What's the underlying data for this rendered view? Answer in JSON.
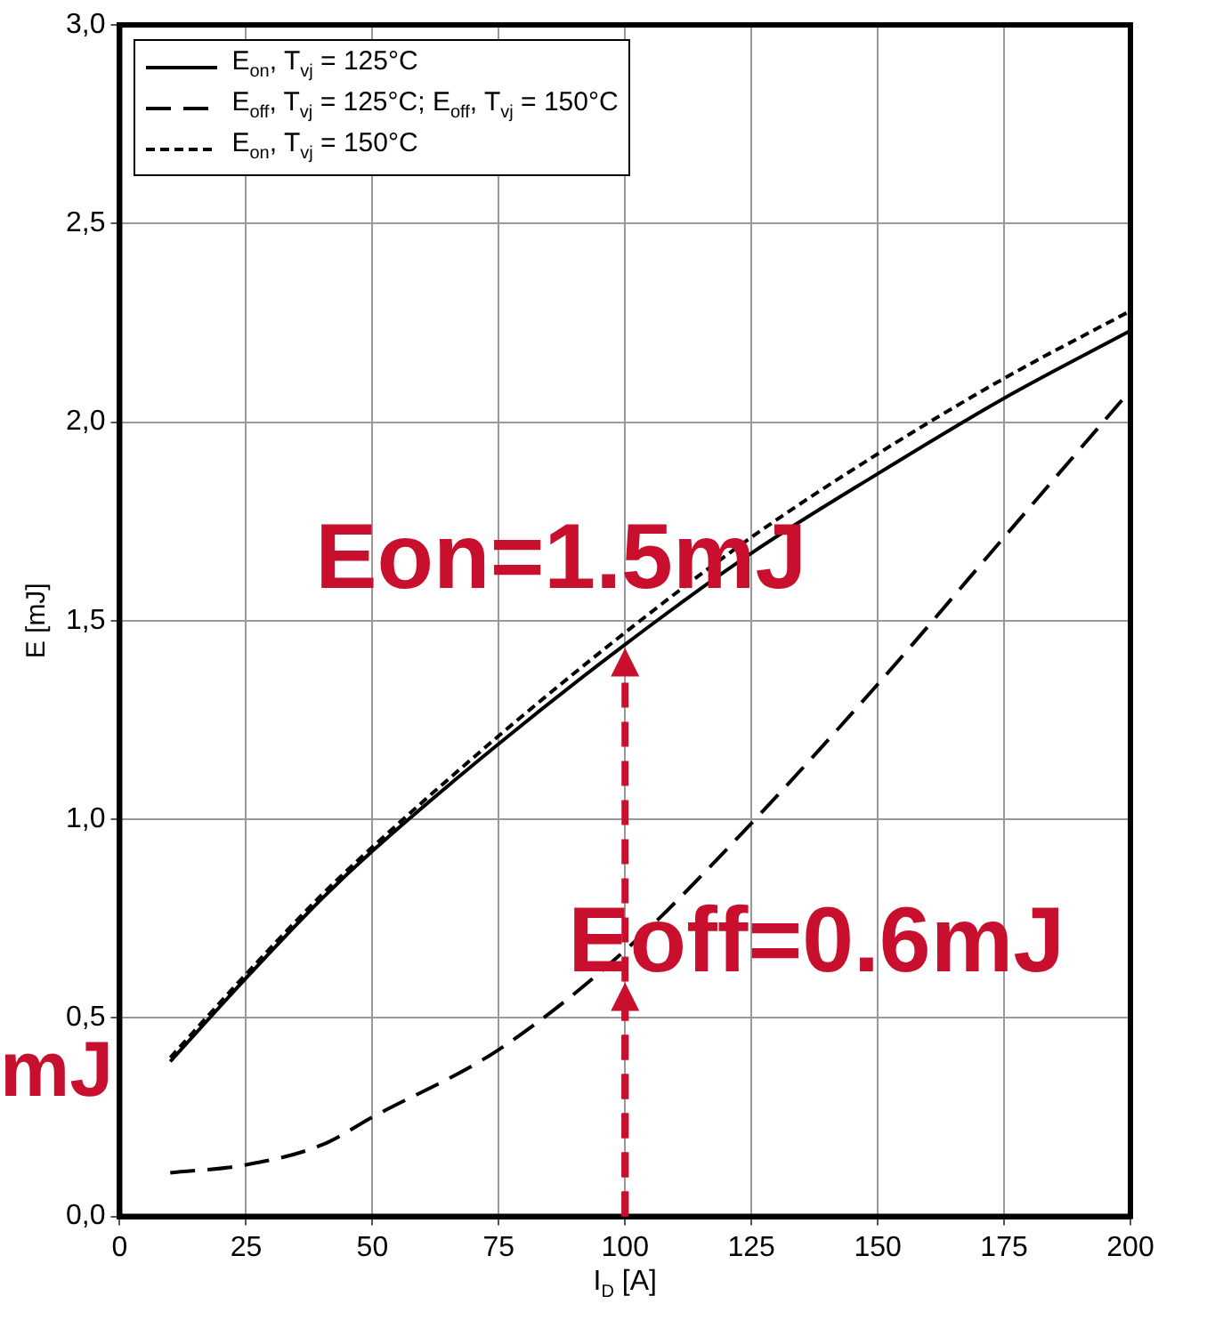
{
  "chart_data": {
    "type": "line",
    "xlabel": "I$_{D}$ [A]",
    "ylabel": "E [mJ]",
    "xlim": [
      0,
      200
    ],
    "xticks": [
      0,
      25,
      50,
      75,
      100,
      125,
      150,
      175,
      200
    ],
    "ylim": [
      0,
      3
    ],
    "yticks": [
      {
        "value": 0,
        "label": "0,0"
      },
      {
        "value": 0.5,
        "label": "0,5"
      },
      {
        "value": 1,
        "label": "1,0"
      },
      {
        "value": 1.5,
        "label": "1,5"
      },
      {
        "value": 2,
        "label": "2,0"
      },
      {
        "value": 2.5,
        "label": "2,5"
      },
      {
        "value": 3,
        "label": "3,0"
      }
    ],
    "grid": true,
    "legend": "top left",
    "marker": "none",
    "x": [
      10,
      25,
      40,
      50,
      75,
      100,
      125,
      150,
      175,
      200
    ],
    "series": [
      {
        "name": "E$_{on}$, T$_{vj}$ = 125°C",
        "color": "#000000",
        "line_style": "solid",
        "values": [
          0.39,
          0.6,
          0.8,
          0.92,
          1.19,
          1.44,
          1.67,
          1.87,
          2.06,
          2.23
        ]
      },
      {
        "name": "E$_{off}$, T$_{vj}$ = 125°C; E$_{off}$, T$_{vj}$ = 150°C",
        "color": "#000000",
        "line_style": "dashed",
        "values": [
          0.11,
          0.13,
          0.18,
          0.25,
          0.42,
          0.67,
          0.99,
          1.34,
          1.71,
          2.08
        ]
      },
      {
        "name": "E$_{on}$, T$_{vj}$ = 150°C",
        "color": "#000000",
        "line_style": "dotted",
        "values": [
          0.4,
          0.61,
          0.81,
          0.93,
          1.21,
          1.47,
          1.71,
          1.92,
          2.11,
          2.28
        ]
      }
    ],
    "annotations": [
      {
        "text": "Eon=1.5mJ",
        "x": 100,
        "y": 1.44
      },
      {
        "text": "Eoff=0.6mJ",
        "x": 100,
        "y": 0.67
      },
      "mJ"
    ]
  }
}
